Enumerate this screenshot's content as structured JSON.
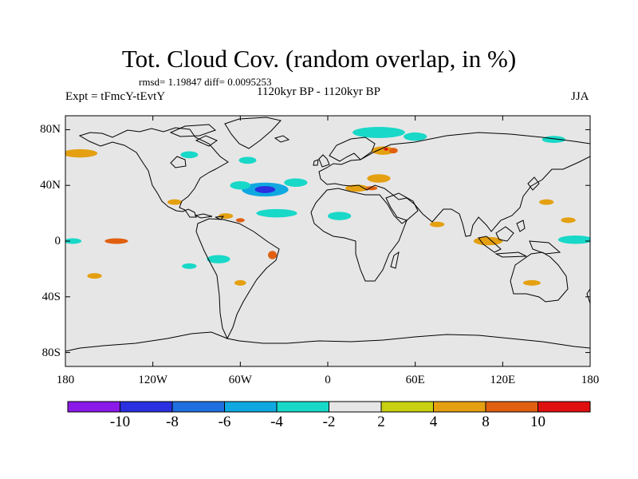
{
  "title": "Tot. Cloud Cov. (random overlap, in %)",
  "stats": "rmsd= 1.19847  diff= 0.0095253",
  "left_label": "Expt = tFmcY-tEvtY",
  "center_label": "1120kyr BP - 1120kyr BP",
  "right_label": "JJA",
  "chart_data": {
    "type": "heatmap",
    "projection": "cylindrical-equidistant",
    "xlim": [
      -180,
      180
    ],
    "ylim": [
      -90,
      90
    ],
    "x_ticks": [
      "180",
      "120W",
      "60W",
      "0",
      "60E",
      "120E",
      "180"
    ],
    "y_ticks": [
      "80N",
      "40N",
      "0",
      "40S",
      "80S"
    ],
    "y_tick_values": [
      80,
      40,
      0,
      -40,
      -80
    ],
    "x_tick_values": [
      -180,
      -120,
      -60,
      0,
      60,
      120,
      180
    ],
    "colorbar": {
      "tick_labels": [
        "-10",
        "-8",
        "-6",
        "-4",
        "-2",
        "2",
        "4",
        "8",
        "10"
      ],
      "colors": [
        "#8b1ae8",
        "#2a2fe0",
        "#1f6fe0",
        "#10a8e0",
        "#18d8c8",
        "#e6e6e6",
        "#c8d010",
        "#e4a010",
        "#e06010",
        "#e01010"
      ]
    },
    "background_color": "#e6e6e6",
    "anomalies": [
      {
        "lon": -43,
        "lat": 37,
        "rx": 7,
        "ry": 2.5,
        "bin": "-8"
      },
      {
        "lon": -43,
        "lat": 37,
        "rx": 16,
        "ry": 5,
        "bin": "-4"
      },
      {
        "lon": -60,
        "lat": 40,
        "rx": 7,
        "ry": 3,
        "bin": "-2"
      },
      {
        "lon": -22,
        "lat": 42,
        "rx": 8,
        "ry": 3,
        "bin": "-2"
      },
      {
        "lon": -35,
        "lat": 20,
        "rx": 14,
        "ry": 3,
        "bin": "-2"
      },
      {
        "lon": 8,
        "lat": 18,
        "rx": 8,
        "ry": 3,
        "bin": "-2"
      },
      {
        "lon": -95,
        "lat": 62,
        "rx": 6,
        "ry": 2.5,
        "bin": "-2"
      },
      {
        "lon": -55,
        "lat": 58,
        "rx": 6,
        "ry": 2.5,
        "bin": "-2"
      },
      {
        "lon": 35,
        "lat": 78,
        "rx": 18,
        "ry": 4,
        "bin": "-2"
      },
      {
        "lon": 60,
        "lat": 75,
        "rx": 8,
        "ry": 3,
        "bin": "-2"
      },
      {
        "lon": 155,
        "lat": 73,
        "rx": 8,
        "ry": 2.5,
        "bin": "-2"
      },
      {
        "lon": 170,
        "lat": 1,
        "rx": 12,
        "ry": 3,
        "bin": "-2"
      },
      {
        "lon": -175,
        "lat": 0,
        "rx": 6,
        "ry": 2,
        "bin": "-2"
      },
      {
        "lon": -75,
        "lat": -13,
        "rx": 8,
        "ry": 3,
        "bin": "-2"
      },
      {
        "lon": -95,
        "lat": -18,
        "rx": 5,
        "ry": 2,
        "bin": "-2"
      },
      {
        "lon": 38,
        "lat": 65,
        "rx": 8,
        "ry": 3,
        "bin": "4"
      },
      {
        "lon": 35,
        "lat": 45,
        "rx": 8,
        "ry": 3,
        "bin": "4"
      },
      {
        "lon": 20,
        "lat": 38,
        "rx": 8,
        "ry": 2.5,
        "bin": "4"
      },
      {
        "lon": 110,
        "lat": 0,
        "rx": 10,
        "ry": 3,
        "bin": "4"
      },
      {
        "lon": -170,
        "lat": 63,
        "rx": 12,
        "ry": 3,
        "bin": "4"
      },
      {
        "lon": -105,
        "lat": 28,
        "rx": 5,
        "ry": 2,
        "bin": "4"
      },
      {
        "lon": -70,
        "lat": 18,
        "rx": 5,
        "ry": 2,
        "bin": "4"
      },
      {
        "lon": 150,
        "lat": 28,
        "rx": 5,
        "ry": 2,
        "bin": "4"
      },
      {
        "lon": 165,
        "lat": 15,
        "rx": 5,
        "ry": 2,
        "bin": "4"
      },
      {
        "lon": 140,
        "lat": -30,
        "rx": 6,
        "ry": 2,
        "bin": "4"
      },
      {
        "lon": -60,
        "lat": -30,
        "rx": 4,
        "ry": 2,
        "bin": "4"
      },
      {
        "lon": -160,
        "lat": -25,
        "rx": 5,
        "ry": 2,
        "bin": "4"
      },
      {
        "lon": 75,
        "lat": 12,
        "rx": 5,
        "ry": 2,
        "bin": "4"
      },
      {
        "lon": 45,
        "lat": 65,
        "rx": 3,
        "ry": 2,
        "bin": "8"
      },
      {
        "lon": 30,
        "lat": 38,
        "rx": 4,
        "ry": 1.5,
        "bin": "8"
      },
      {
        "lon": -38,
        "lat": -10,
        "rx": 3,
        "ry": 3,
        "bin": "8"
      },
      {
        "lon": -145,
        "lat": 0,
        "rx": 8,
        "ry": 2,
        "bin": "8"
      },
      {
        "lon": -60,
        "lat": 15,
        "rx": 3,
        "ry": 1.5,
        "bin": "8"
      },
      {
        "lon": 40,
        "lat": 66,
        "rx": 1.5,
        "ry": 1,
        "bin": "10"
      }
    ]
  }
}
